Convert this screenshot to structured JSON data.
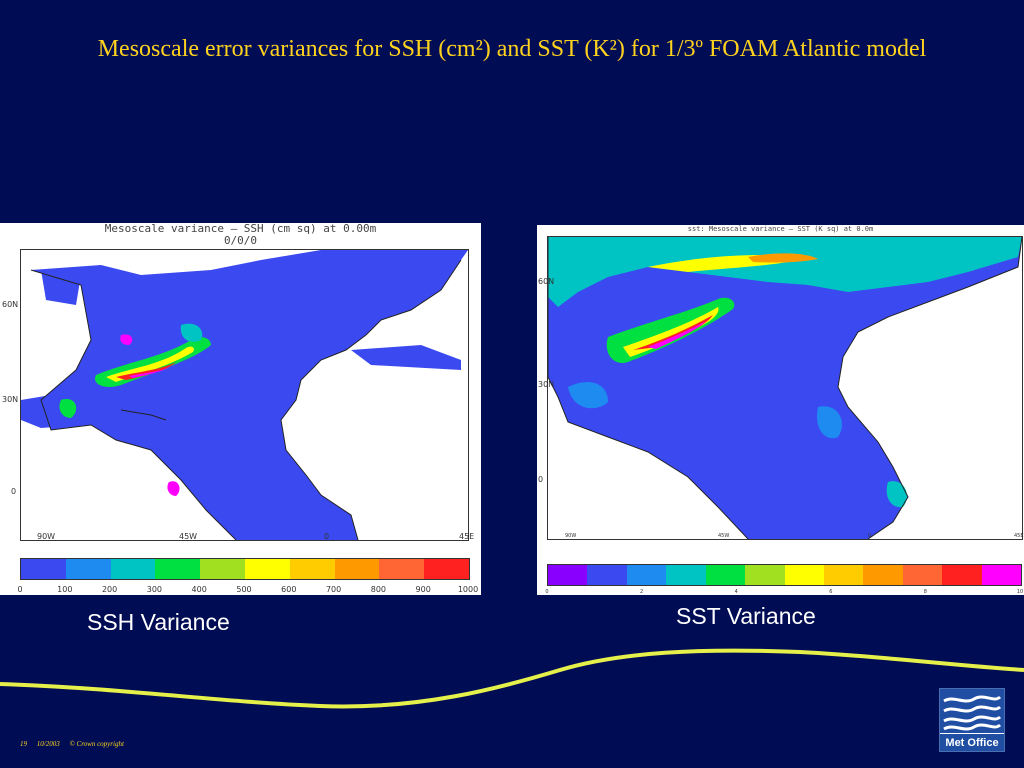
{
  "slide": {
    "title": "Mesoscale error variances for SSH (cm²) and SST (K²) for 1/3º FOAM Atlantic model"
  },
  "ssh": {
    "header_line1": "Mesoscale variance – SSH (cm sq) at 0.00m",
    "header_line2": "0/0/0",
    "lat_labels": [
      "60N",
      "30N",
      "0"
    ],
    "lon_labels": [
      "90W",
      "45W",
      "0",
      "45E"
    ],
    "colorbar_colors": [
      "#3b49f0",
      "#1e8bf0",
      "#00c4c4",
      "#00e040",
      "#a0e020",
      "#ffff00",
      "#ffcc00",
      "#ff9900",
      "#ff6633",
      "#ff2020"
    ],
    "colorbar_ticks": [
      "0",
      "100",
      "200",
      "300",
      "400",
      "500",
      "600",
      "700",
      "800",
      "900",
      "1000"
    ],
    "caption": "SSH Variance"
  },
  "sst": {
    "header": "sst: Mesoscale variance – SST (K sq) at 0.0m",
    "lat_labels": [
      "60N",
      "30N",
      "0"
    ],
    "lon_labels": [
      "90W",
      "45W",
      "0",
      "45E"
    ],
    "colorbar_colors": [
      "#8a00ff",
      "#3b49f0",
      "#1e8bf0",
      "#00c4c4",
      "#00e040",
      "#a0e020",
      "#ffff00",
      "#ffcc00",
      "#ff9900",
      "#ff6633",
      "#ff2020",
      "#ff00ff"
    ],
    "colorbar_ticks": [
      "0",
      "2",
      "4",
      "6",
      "8",
      "10"
    ],
    "caption": "SST Variance"
  },
  "footer": {
    "slide_number": "19",
    "date": "10/2003",
    "copyright": "© Crown copyright"
  },
  "logo": {
    "text": "Met Office"
  },
  "colors": {
    "background": "#000d55",
    "title": "#ffd21e",
    "wave": "#e6f04a",
    "ocean": "#3b49f0"
  }
}
